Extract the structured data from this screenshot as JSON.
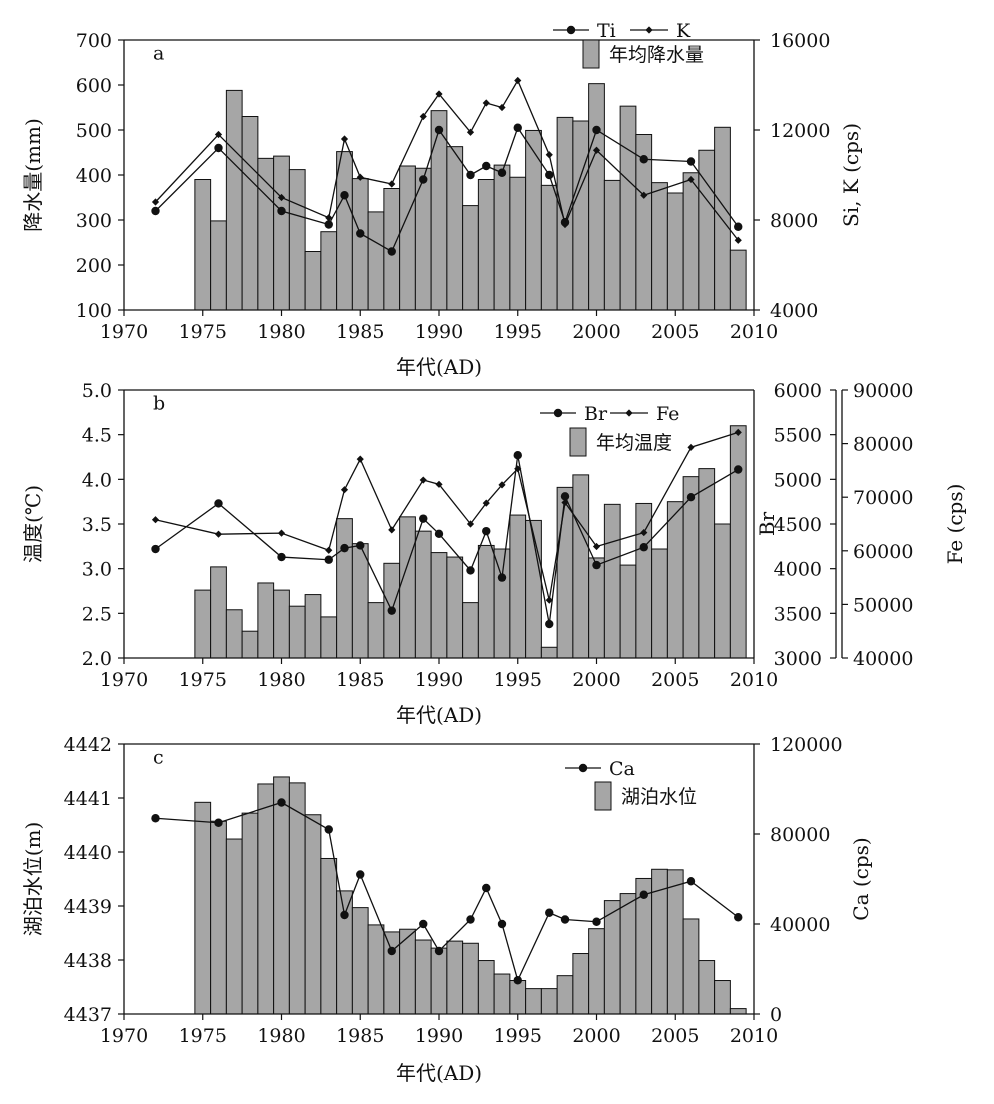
{
  "colors": {
    "bar_fill": "#a6a6a6",
    "bar_stroke": "#111111",
    "line": "#111111",
    "background": "#ffffff"
  },
  "chart_data": [
    {
      "panel": "a",
      "type": "bar+line",
      "xlabel": "年代(AD)",
      "xlim": [
        1970,
        2010
      ],
      "xticks": [
        1970,
        1975,
        1980,
        1985,
        1990,
        1995,
        2000,
        2005,
        2010
      ],
      "left_axis": {
        "label": "降水量(mm)",
        "lim": [
          100,
          700
        ],
        "ticks": [
          100,
          200,
          300,
          400,
          500,
          600,
          700
        ]
      },
      "right_axes": [
        {
          "label": "Si, K (cps)",
          "lim": [
            4000,
            16000
          ],
          "ticks": [
            4000,
            8000,
            12000,
            16000
          ]
        }
      ],
      "bars": {
        "name": "年均降水量",
        "x": [
          1975,
          1976,
          1977,
          1978,
          1979,
          1980,
          1981,
          1982,
          1983,
          1984,
          1985,
          1986,
          1987,
          1988,
          1989,
          1990,
          1991,
          1992,
          1993,
          1994,
          1995,
          1996,
          1997,
          1998,
          1999,
          2000,
          2001,
          2002,
          2003,
          2004,
          2005,
          2006,
          2007,
          2008,
          2009
        ],
        "values": [
          390,
          298,
          588,
          530,
          437,
          442,
          412,
          230,
          274,
          452,
          392,
          318,
          370,
          420,
          415,
          543,
          463,
          332,
          390,
          422,
          395,
          499,
          377,
          528,
          520,
          603,
          388,
          553,
          490,
          383,
          360,
          405,
          455,
          506,
          233
        ]
      },
      "series": [
        {
          "name": "Ti",
          "marker": "circle",
          "axis": 0,
          "x": [
            1972,
            1976,
            1980,
            1983,
            1984,
            1985,
            1987,
            1989,
            1990,
            1992,
            1993,
            1994,
            1995,
            1997,
            1998,
            2000,
            2003,
            2006,
            2009
          ],
          "values": [
            8400,
            11200,
            8400,
            7800,
            9100,
            7400,
            6600,
            9800,
            12000,
            10000,
            10400,
            10100,
            12100,
            10000,
            7900,
            12000,
            10700,
            10600,
            7700
          ]
        },
        {
          "name": "K",
          "marker": "diamond",
          "axis": 0,
          "x": [
            1972,
            1976,
            1980,
            1983,
            1984,
            1985,
            1987,
            1989,
            1990,
            1992,
            1993,
            1994,
            1995,
            1997,
            1998,
            2000,
            2003,
            2006,
            2009
          ],
          "values": [
            8800,
            11800,
            9000,
            8100,
            11600,
            9900,
            9600,
            12600,
            13600,
            11900,
            13200,
            13000,
            14200,
            10900,
            7800,
            11100,
            9100,
            9800,
            7100
          ]
        }
      ]
    },
    {
      "panel": "b",
      "type": "bar+line",
      "xlabel": "年代(AD)",
      "xlim": [
        1970,
        2010
      ],
      "xticks": [
        1970,
        1975,
        1980,
        1985,
        1990,
        1995,
        2000,
        2005,
        2010
      ],
      "left_axis": {
        "label": "温度(℃)",
        "lim": [
          2.0,
          5.0
        ],
        "ticks": [
          "2.0",
          "2.5",
          "3.0",
          "3.5",
          "4.0",
          "4.5",
          "5.0"
        ]
      },
      "right_axes": [
        {
          "label": "Br",
          "lim": [
            3000,
            6000
          ],
          "ticks": [
            3000,
            3500,
            4000,
            4500,
            5000,
            5500,
            6000
          ]
        },
        {
          "label": "Fe (cps)",
          "lim": [
            40000,
            90000
          ],
          "ticks": [
            40000,
            50000,
            60000,
            70000,
            80000,
            90000
          ]
        }
      ],
      "bars": {
        "name": "年均温度",
        "x": [
          1975,
          1976,
          1977,
          1978,
          1979,
          1980,
          1981,
          1982,
          1983,
          1984,
          1985,
          1986,
          1987,
          1988,
          1989,
          1990,
          1991,
          1992,
          1993,
          1994,
          1995,
          1996,
          1997,
          1998,
          1999,
          2000,
          2001,
          2002,
          2003,
          2004,
          2005,
          2006,
          2007,
          2008,
          2009
        ],
        "values": [
          2.76,
          3.02,
          2.54,
          2.3,
          2.84,
          2.76,
          2.58,
          2.71,
          2.46,
          3.56,
          3.28,
          2.62,
          3.06,
          3.58,
          3.42,
          3.18,
          3.13,
          2.62,
          3.26,
          3.22,
          3.6,
          3.54,
          2.12,
          3.91,
          4.05,
          3.12,
          3.72,
          3.04,
          3.73,
          3.22,
          3.75,
          4.03,
          4.12,
          3.5,
          4.6
        ]
      },
      "series": [
        {
          "name": "Br",
          "marker": "circle",
          "axis": 0,
          "x": [
            1972,
            1976,
            1980,
            1983,
            1984,
            1985,
            1987,
            1989,
            1990,
            1992,
            1993,
            1994,
            1995,
            1997,
            1998,
            2000,
            2003,
            2006,
            2009
          ],
          "values": [
            4220,
            4730,
            4130,
            4100,
            4230,
            4260,
            3530,
            4560,
            4390,
            3980,
            4420,
            3900,
            5270,
            3380,
            4810,
            4040,
            4240,
            4800,
            5110
          ]
        },
        {
          "name": "Fe",
          "marker": "diamond",
          "axis": 1,
          "x": [
            1972,
            1976,
            1980,
            1983,
            1984,
            1985,
            1987,
            1989,
            1990,
            1992,
            1993,
            1994,
            1995,
            1997,
            1998,
            2000,
            2003,
            2006,
            2009
          ],
          "values": [
            65800,
            63100,
            63300,
            60100,
            71400,
            77100,
            63900,
            73200,
            72400,
            65000,
            68900,
            72300,
            75300,
            50800,
            69000,
            60800,
            63400,
            79300,
            82100
          ]
        }
      ]
    },
    {
      "panel": "c",
      "type": "bar+line",
      "xlabel": "年代(AD)",
      "xlim": [
        1970,
        2010
      ],
      "xticks": [
        1970,
        1975,
        1980,
        1985,
        1990,
        1995,
        2000,
        2005,
        2010
      ],
      "left_axis": {
        "label": "湖泊水位(m)",
        "lim": [
          4437,
          4442
        ],
        "ticks": [
          4437,
          4438,
          4439,
          4440,
          4441,
          4442
        ]
      },
      "right_axes": [
        {
          "label": "Ca (cps)",
          "lim": [
            0,
            120000
          ],
          "ticks": [
            0,
            40000,
            80000,
            120000
          ]
        }
      ],
      "bars": {
        "name": "湖泊水位",
        "x": [
          1975,
          1976,
          1977,
          1978,
          1979,
          1980,
          1981,
          1982,
          1983,
          1984,
          1985,
          1986,
          1987,
          1988,
          1989,
          1990,
          1991,
          1992,
          1993,
          1994,
          1995,
          1996,
          1997,
          1998,
          1999,
          2000,
          2001,
          2002,
          2003,
          2004,
          2005,
          2006,
          2007,
          2008,
          2009
        ],
        "values": [
          4440.92,
          4440.57,
          4440.24,
          4440.72,
          4441.26,
          4441.39,
          4441.28,
          4440.69,
          4439.88,
          4439.28,
          4438.97,
          4438.65,
          4438.52,
          4438.57,
          4438.37,
          4438.22,
          4438.35,
          4438.31,
          4437.99,
          4437.74,
          4437.62,
          4437.47,
          4437.47,
          4437.71,
          4438.12,
          4438.58,
          4439.1,
          4439.23,
          4439.51,
          4439.68,
          4439.67,
          4438.76,
          4437.99,
          4437.62,
          4437.1
        ]
      },
      "series": [
        {
          "name": "Ca",
          "marker": "circle",
          "axis": 0,
          "x": [
            1972,
            1976,
            1980,
            1983,
            1984,
            1985,
            1987,
            1989,
            1990,
            1992,
            1993,
            1994,
            1995,
            1997,
            1998,
            2000,
            2003,
            2006,
            2009
          ],
          "values": [
            87000,
            85000,
            94000,
            82000,
            44000,
            62000,
            28000,
            40000,
            28000,
            42000,
            56000,
            40000,
            15000,
            45000,
            42000,
            41000,
            53000,
            59000,
            43000
          ]
        }
      ]
    }
  ]
}
